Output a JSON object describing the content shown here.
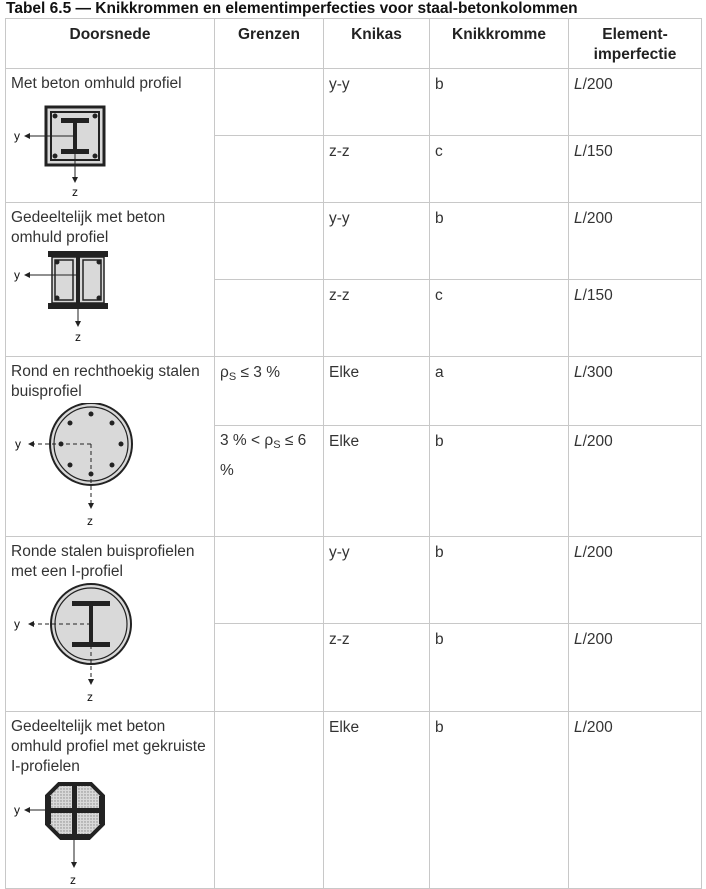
{
  "title": "Tabel 6.5 — Knikkrommen en elementimperfecties voor staal-betonkolommen",
  "headers": {
    "doorsnede": "Doorsnede",
    "grenzen": "Grenzen",
    "knikas": "Knikas",
    "knikkromme": "Knikkromme",
    "element_1": "Element-",
    "element_2": "imperfectie"
  },
  "axis": {
    "y": "y",
    "z": "z"
  },
  "rows": [
    {
      "doorsnede": "Met beton omhuld profiel",
      "icon": "encased-i-profile-icon",
      "sub": [
        {
          "grenzen": "",
          "knikas": "y-y",
          "knikkromme": "b",
          "imp_l": "L",
          "imp_rest": "/200"
        },
        {
          "grenzen": "",
          "knikas": "z-z",
          "knikkromme": "c",
          "imp_l": "L",
          "imp_rest": "/150"
        }
      ]
    },
    {
      "doorsnede": "Gedeeltelijk met beton omhuld profiel",
      "icon": "partially-encased-profile-icon",
      "sub": [
        {
          "grenzen": "",
          "knikas": "y-y",
          "knikkromme": "b",
          "imp_l": "L",
          "imp_rest": "/200"
        },
        {
          "grenzen": "",
          "knikas": "z-z",
          "knikkromme": "c",
          "imp_l": "L",
          "imp_rest": "/150"
        }
      ]
    },
    {
      "doorsnede": "Rond en rechthoekig stalen buisprofiel",
      "icon": "concrete-filled-tube-icon",
      "sub": [
        {
          "rho": "ρ",
          "s": "S",
          "grenzen_post": " ≤ 3 %",
          "knikas": "Elke",
          "knikkromme": "a",
          "imp_l": "L",
          "imp_rest": "/300"
        },
        {
          "grenzen_pre": "3 % < ",
          "rho": "ρ",
          "s": "S",
          "grenzen_post": " ≤ 6 %",
          "knikas": "Elke",
          "knikkromme": "b",
          "imp_l": "L",
          "imp_rest": "/200"
        }
      ]
    },
    {
      "doorsnede": "Ronde stalen buisprofielen met een I-profiel",
      "icon": "tube-with-i-profile-icon",
      "sub": [
        {
          "grenzen": "",
          "knikas": "y-y",
          "knikkromme": "b",
          "imp_l": "L",
          "imp_rest": "/200"
        },
        {
          "grenzen": "",
          "knikas": "z-z",
          "knikkromme": "b",
          "imp_l": "L",
          "imp_rest": "/200"
        }
      ]
    },
    {
      "doorsnede": "Gedeeltelijk met beton omhuld profiel met gekruiste I-profielen",
      "icon": "crossed-i-profiles-icon",
      "sub": [
        {
          "grenzen": "",
          "knikas": "Elke",
          "knikkromme": "b",
          "imp_l": "L",
          "imp_rest": "/200"
        }
      ]
    }
  ]
}
